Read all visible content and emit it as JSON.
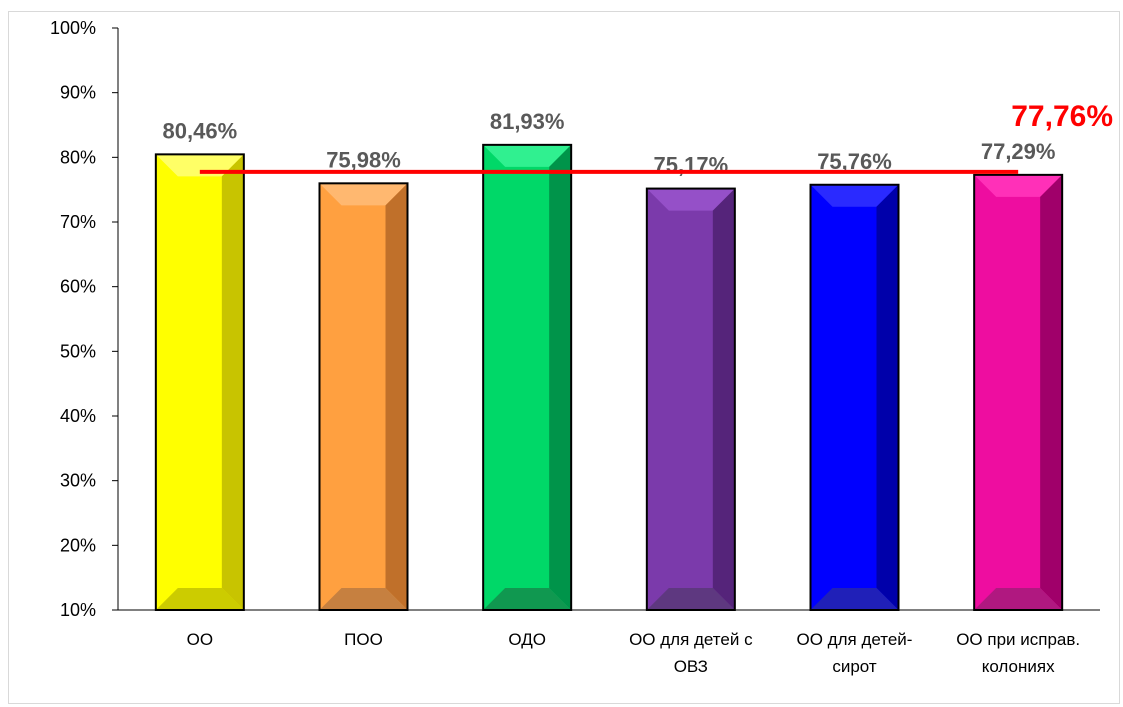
{
  "chart_data": {
    "type": "bar",
    "categories": [
      [
        "ОО"
      ],
      [
        "ПОО"
      ],
      [
        "ОДО"
      ],
      [
        "ОО для детей с",
        "ОВЗ"
      ],
      [
        "ОО для детей-",
        "сирот"
      ],
      [
        "ОО при исправ.",
        "колониях"
      ]
    ],
    "values": [
      80.46,
      75.98,
      81.93,
      75.17,
      75.76,
      77.29
    ],
    "data_labels": [
      "80,46%",
      "75,98%",
      "81,93%",
      "75,17%",
      "75,76%",
      "77,29%"
    ],
    "ylim": [
      10,
      100
    ],
    "y_ticks": [
      "10%",
      "20%",
      "30%",
      "40%",
      "50%",
      "60%",
      "70%",
      "80%",
      "90%",
      "100%"
    ],
    "reference_line": {
      "value": 77.76,
      "label": "77,76%",
      "color": "#ff0000"
    },
    "bar_colors": [
      {
        "front": "#ffff00",
        "side": "#c8c400",
        "top": "#ffff66",
        "bottom": "#cccc00"
      },
      {
        "front": "#ffa040",
        "side": "#c0702a",
        "top": "#ffb870",
        "bottom": "#c68040"
      },
      {
        "front": "#00d868",
        "side": "#00944a",
        "top": "#30f090",
        "bottom": "#109850"
      },
      {
        "front": "#7b3aab",
        "side": "#55247a",
        "top": "#9550c8",
        "bottom": "#5e3880"
      },
      {
        "front": "#0000ff",
        "side": "#0000aa",
        "top": "#2a2aff",
        "bottom": "#2020b8"
      },
      {
        "front": "#ee0da0",
        "side": "#a0006a",
        "top": "#ff30b8",
        "bottom": "#b01880"
      }
    ],
    "title": "",
    "xlabel": "",
    "ylabel": "",
    "grid": false,
    "legend": "none"
  }
}
